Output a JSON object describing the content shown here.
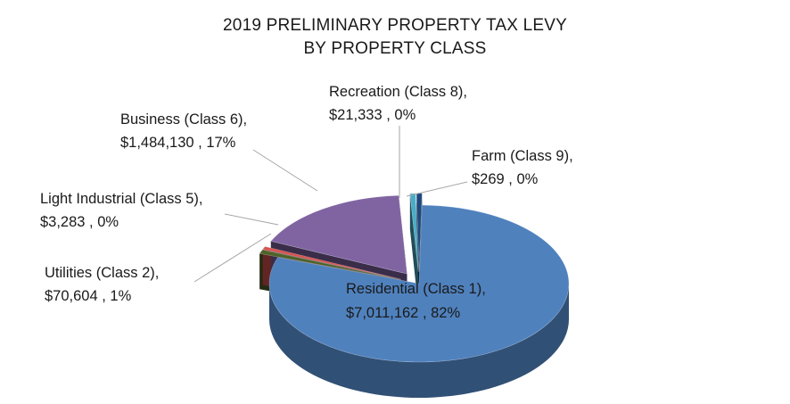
{
  "chart_data": {
    "type": "pie",
    "title_lines": [
      "2019 PRELIMINARY PROPERTY TAX LEVY",
      "BY PROPERTY CLASS"
    ],
    "slices": [
      {
        "name": "Residential (Class 1)",
        "label_line1": "Residential (Class 1),",
        "label_line2": "$7,011,162 , 82%",
        "value": 7011162,
        "color": "#4f81bd"
      },
      {
        "name": "Utilities (Class 2)",
        "label_line1": "Utilities (Class 2),",
        "label_line2": "$70,604 , 1%",
        "value": 70604,
        "color": "#4f6228"
      },
      {
        "name": "Light Industrial (Class 5)",
        "label_line1": "Light Industrial (Class 5),",
        "label_line2": "$3,283 , 0%",
        "value": 3283,
        "color": "#d9534f"
      },
      {
        "name": "Business (Class 6)",
        "label_line1": "Business (Class 6),",
        "label_line2": "$1,484,130 , 17%",
        "value": 1484130,
        "color": "#8064a2"
      },
      {
        "name": "Recreation (Class 8)",
        "label_line1": "Recreation (Class 8),",
        "label_line2": "$21,333 , 0%",
        "value": 21333,
        "color": "#4bacc6"
      },
      {
        "name": "Farm (Class 9)",
        "label_line1": "Farm (Class 9),",
        "label_line2": "$269 , 0%",
        "value": 269,
        "color": "#1f497d"
      }
    ],
    "style": "3d-exploded-pie"
  }
}
